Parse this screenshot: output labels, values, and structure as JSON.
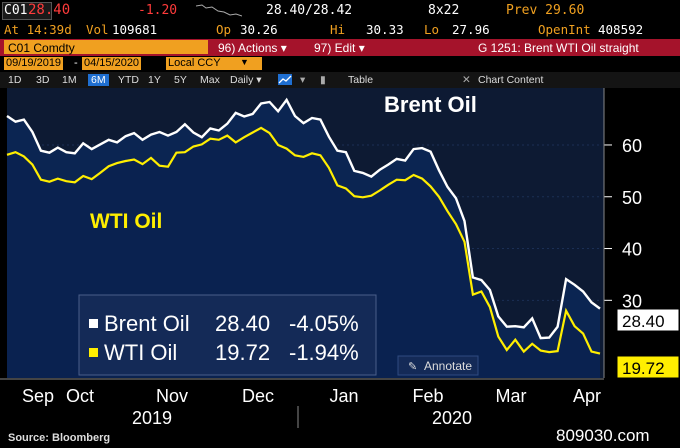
{
  "header": {
    "ticker": "C01",
    "last_price": "28.40",
    "change": "-1.20",
    "bid_ask": "28.40/28.42",
    "size": "8x22",
    "prev": "Prev 29.60",
    "time": "At 14:39d",
    "vol_label": "Vol",
    "vol": "109681",
    "op_label": "Op",
    "op": "30.26",
    "hi_label": "Hi",
    "hi": "30.33",
    "lo_label": "Lo",
    "lo": "27.96",
    "oi_label": "OpenInt",
    "oi": "408592"
  },
  "toolbar": {
    "security": "C01 Comdty",
    "actions": "96) Actions ▾",
    "edit": "97) Edit ▾",
    "page_title": "G 1251: Brent WTI Oil straight",
    "start_date": "09/19/2019",
    "end_date": "04/15/2020",
    "currency": "Local CCY",
    "periods": [
      "1D",
      "3D",
      "1M",
      "6M",
      "YTD",
      "1Y",
      "5Y",
      "Max"
    ],
    "selected_period": "6M",
    "frequency": "Daily ▾",
    "table": "Table",
    "chart_content": "Chart Content"
  },
  "colors": {
    "brent": "#ffffff",
    "wti": "#ffee00",
    "area": "#0b2552",
    "red_bar": "#a5132b",
    "orange": "#f0a020"
  },
  "chart_data": {
    "type": "area",
    "title": "Brent Oil",
    "series": [
      {
        "name": "Brent Oil",
        "last": "28.40",
        "last_change": "-4.05%",
        "values": [
          65.6,
          64.5,
          64.9,
          62.5,
          58.9,
          58.5,
          59.5,
          58.6,
          58.4,
          60.3,
          59.2,
          60.1,
          61.0,
          60.5,
          61.7,
          62.3,
          61.0,
          62.0,
          62.5,
          61.8,
          62.5,
          64.0,
          62.4,
          61.5,
          63.2,
          62.8,
          64.1,
          66.2,
          65.5,
          66.0,
          68.0,
          68.3,
          66.5,
          68.7,
          65.6,
          64.2,
          65.2,
          64.9,
          61.6,
          58.9,
          58.6,
          55.0,
          54.6,
          53.9,
          55.2,
          56.2,
          57.3,
          57.0,
          59.2,
          59.4,
          58.7,
          55.1,
          51.9,
          49.7,
          45.3,
          34.4,
          33.9,
          32.0,
          26.9,
          24.9,
          25.0,
          24.8,
          26.5,
          22.7,
          22.8,
          24.9,
          34.1,
          33.0,
          31.7,
          29.6,
          28.4
        ]
      },
      {
        "name": "WTI Oil",
        "last": "19.72",
        "last_change": "-1.94%",
        "values": [
          58.1,
          58.6,
          57.8,
          56.2,
          53.3,
          52.9,
          53.5,
          53.0,
          52.8,
          54.0,
          53.4,
          54.6,
          55.9,
          56.5,
          56.9,
          57.2,
          56.3,
          57.5,
          56.0,
          55.8,
          58.5,
          58.6,
          59.7,
          60.1,
          61.2,
          61.0,
          61.8,
          60.5,
          61.5,
          62.4,
          63.3,
          62.3,
          60.0,
          59.3,
          58.0,
          57.7,
          58.4,
          58.0,
          55.6,
          52.2,
          51.6,
          50.1,
          49.9,
          50.2,
          51.2,
          52.3,
          53.3,
          53.2,
          54.2,
          53.5,
          52.0,
          50.0,
          47.2,
          44.7,
          41.3,
          31.1,
          31.7,
          28.7,
          23.0,
          20.4,
          22.4,
          20.1,
          21.6,
          20.3,
          20.0,
          20.2,
          28.0,
          25.0,
          23.6,
          20.1,
          19.72
        ]
      }
    ],
    "y_ticks": [
      30,
      40,
      50,
      60
    ],
    "ylim": [
      15,
      71
    ],
    "x_month_labels": [
      "Sep",
      "Oct",
      "Nov",
      "Dec",
      "Jan",
      "Feb",
      "Mar",
      "Apr"
    ],
    "x_year_labels": [
      "2019",
      "2020"
    ],
    "legend_placement": "bottom-left",
    "labels": {
      "brent_title": "Brent Oil",
      "wti_title": "WTI Oil"
    },
    "last_price_tags": {
      "brent": "28.40",
      "wti": "19.72"
    }
  },
  "annotate": "Annotate",
  "source": "Source: Bloomberg",
  "watermark": "809030.com"
}
